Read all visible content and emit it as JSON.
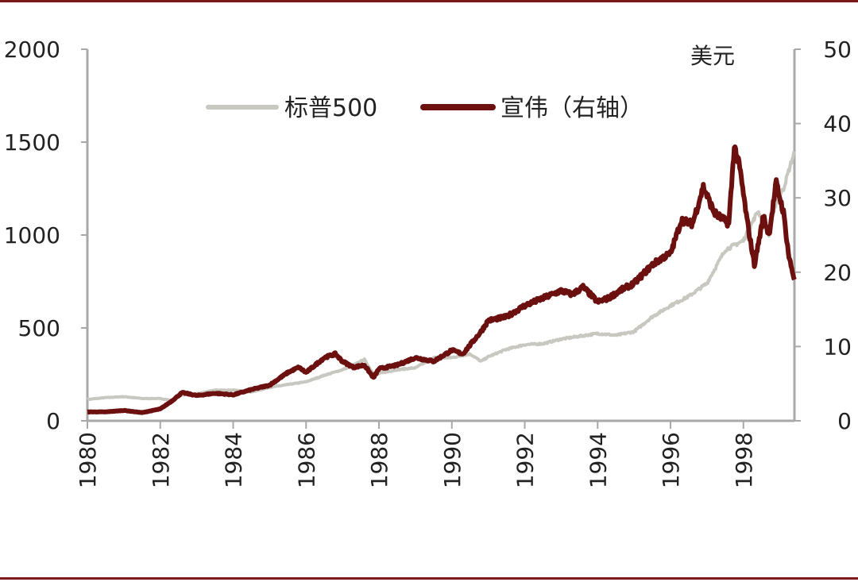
{
  "chart_data": {
    "type": "line",
    "title": "",
    "xlabel": "",
    "ylabel": "",
    "y2label": "美元",
    "xlim": [
      1980,
      1999.4
    ],
    "ylim": [
      0,
      2000
    ],
    "y2lim": [
      0,
      50
    ],
    "x_ticks": [
      "1980",
      "1982",
      "1984",
      "1986",
      "1988",
      "1990",
      "1992",
      "1994",
      "1996",
      "1998"
    ],
    "y_ticks": [
      "0",
      "500",
      "1000",
      "1500",
      "2000"
    ],
    "y2_ticks": [
      "0",
      "10",
      "20",
      "30",
      "40",
      "50"
    ],
    "legend_position": "top-center",
    "grid": false,
    "series": [
      {
        "name": "标普500",
        "axis": "left",
        "color": "#c8c8c0",
        "x": [
          1980.0,
          1980.5,
          1981.0,
          1981.5,
          1982.0,
          1982.3,
          1982.6,
          1983.0,
          1983.5,
          1984.0,
          1984.5,
          1985.0,
          1985.5,
          1986.0,
          1986.5,
          1987.0,
          1987.3,
          1987.6,
          1987.85,
          1988.0,
          1988.5,
          1989.0,
          1989.5,
          1990.0,
          1990.5,
          1990.8,
          1991.0,
          1991.5,
          1992.0,
          1992.5,
          1993.0,
          1993.5,
          1994.0,
          1994.5,
          1995.0,
          1995.5,
          1996.0,
          1996.5,
          1997.0,
          1997.5,
          1997.8,
          1998.0,
          1998.4,
          1998.7,
          1998.9,
          1999.1,
          1999.4
        ],
        "values": [
          115,
          125,
          130,
          120,
          120,
          110,
          140,
          145,
          165,
          165,
          155,
          180,
          195,
          210,
          245,
          275,
          300,
          330,
          250,
          255,
          275,
          285,
          340,
          340,
          360,
          320,
          345,
          385,
          410,
          415,
          440,
          455,
          470,
          460,
          480,
          560,
          620,
          670,
          740,
          920,
          950,
          970,
          1130,
          1000,
          1180,
          1250,
          1450
        ]
      },
      {
        "name": "宣伟（右轴）",
        "axis": "right",
        "color": "#6b0f0f",
        "x": [
          1980.0,
          1980.5,
          1981.0,
          1981.5,
          1982.0,
          1982.3,
          1982.6,
          1983.0,
          1983.5,
          1984.0,
          1984.5,
          1985.0,
          1985.5,
          1985.8,
          1986.0,
          1986.5,
          1986.8,
          1987.0,
          1987.3,
          1987.6,
          1987.85,
          1988.0,
          1988.5,
          1989.0,
          1989.5,
          1990.0,
          1990.3,
          1990.8,
          1991.0,
          1991.5,
          1992.0,
          1992.5,
          1993.0,
          1993.3,
          1993.6,
          1994.0,
          1994.3,
          1994.6,
          1995.0,
          1995.5,
          1995.8,
          1996.0,
          1996.3,
          1996.6,
          1996.9,
          1997.2,
          1997.6,
          1997.75,
          1997.9,
          1998.1,
          1998.3,
          1998.55,
          1998.7,
          1998.9,
          1999.1,
          1999.25,
          1999.4
        ],
        "values": [
          1.2,
          1.2,
          1.4,
          1.1,
          1.6,
          2.6,
          3.8,
          3.4,
          3.7,
          3.5,
          4.2,
          4.8,
          6.5,
          7.2,
          6.5,
          8.5,
          9.0,
          8.0,
          7.2,
          7.5,
          5.8,
          7.0,
          7.5,
          8.5,
          8.0,
          9.5,
          9.0,
          12.0,
          13.5,
          14.0,
          15.5,
          16.5,
          17.5,
          17.0,
          18.0,
          16.0,
          16.5,
          17.5,
          18.5,
          21.0,
          22.0,
          22.5,
          27.0,
          26.5,
          31.5,
          28.0,
          26.5,
          37.0,
          34.0,
          27.0,
          21.0,
          27.5,
          25.0,
          32.0,
          28.0,
          22.0,
          19.0
        ]
      }
    ]
  }
}
